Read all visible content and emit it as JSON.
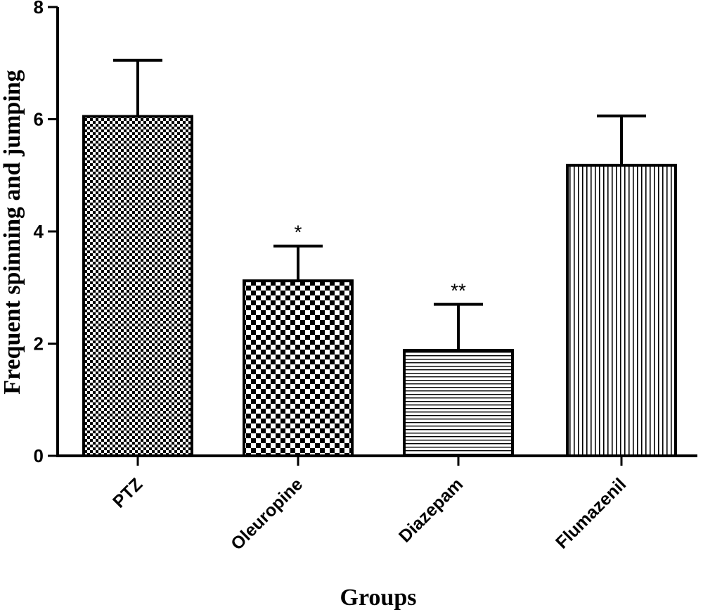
{
  "chart_data": {
    "type": "bar",
    "title": "",
    "xlabel": "Groups",
    "ylabel": "Frequent spinning and jumping",
    "ylim": [
      0,
      8
    ],
    "yticks": [
      "0",
      "2",
      "4",
      "6",
      "8"
    ],
    "categories": [
      "PTZ",
      "Oleuropine",
      "Diazepam",
      "Flumazenil"
    ],
    "values": [
      6.05,
      3.12,
      1.88,
      5.18
    ],
    "errors": [
      1.0,
      0.62,
      0.82,
      0.88
    ],
    "significance": [
      "",
      "*",
      "**",
      ""
    ],
    "patterns": [
      "fine-check",
      "coarse-check",
      "horizontal-lines",
      "vertical-lines"
    ],
    "bar_color": "#000000",
    "background": "#ffffff",
    "grid": false
  }
}
